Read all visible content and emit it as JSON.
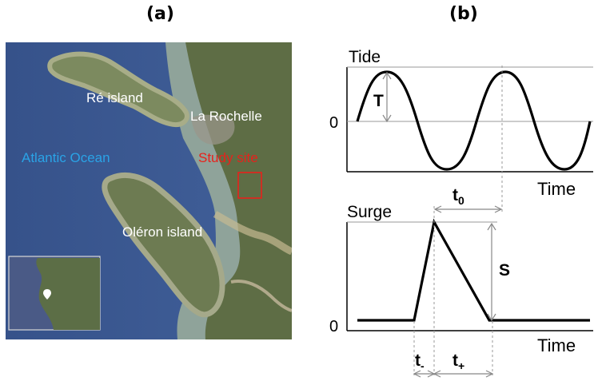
{
  "panels": {
    "a": "(a)",
    "b": "(b)"
  },
  "map": {
    "labels": {
      "re_island": "Ré island",
      "la_rochelle": "La Rochelle",
      "atlantic": "Atlantic Ocean",
      "study_site": "Study site",
      "oleron": "Oléron island"
    },
    "colors": {
      "sea": "#3f5a8a",
      "sea_shallow": "#7d9aa6",
      "coast_sand": "#b9b08a",
      "land": "#5f6e45",
      "atlantic_label": "#2aa3e6",
      "study_label": "#e8211b",
      "text_light": "#ffffff"
    }
  },
  "tide_plot": {
    "title": "Tide",
    "zero": "0",
    "x_label": "Time",
    "amp_label": "T"
  },
  "surge_plot": {
    "title": "Surge",
    "zero": "0",
    "x_label": "Time",
    "amp_label": "S",
    "t0_base": "t",
    "t0_sub": "0",
    "tminus_base": "t",
    "tminus_sub": "-",
    "tplus_base": "t",
    "tplus_sub": "+"
  }
}
